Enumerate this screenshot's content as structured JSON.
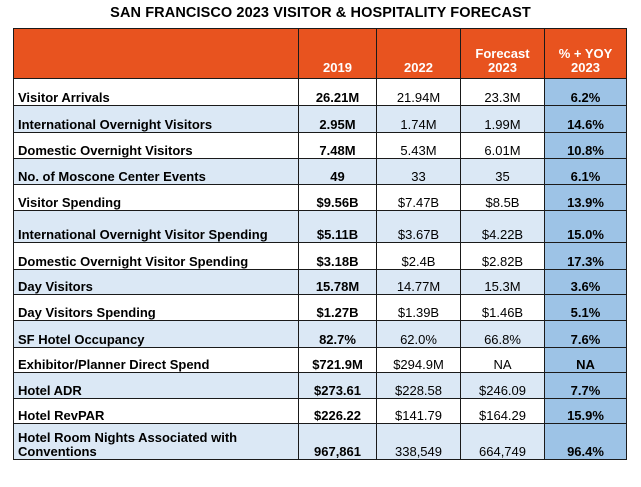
{
  "title": "SAN FRANCISCO 2023 VISITOR & HOSPITALITY FORECAST",
  "colors": {
    "header_bg": "#e8531f",
    "header_text": "#ffffff",
    "band": "#dbe8f5",
    "yoy_col": "#9dc3e6"
  },
  "headers": {
    "metric": "",
    "y2019": "2019",
    "y2022": "2022",
    "forecast_line1": "Forecast",
    "forecast_line2": "2023",
    "yoy_line1": "% + YOY",
    "yoy_line2": "2023"
  },
  "rows": [
    {
      "metric": "Visitor Arrivals",
      "y2019": "26.21M",
      "y2022": "21.94M",
      "f2023": "23.3M",
      "yoy": "6.2%"
    },
    {
      "metric": "International Overnight Visitors",
      "y2019": "2.95M",
      "y2022": "1.74M",
      "f2023": "1.99M",
      "yoy": "14.6%"
    },
    {
      "metric": "Domestic Overnight Visitors",
      "y2019": "7.48M",
      "y2022": "5.43M",
      "f2023": "6.01M",
      "yoy": "10.8%"
    },
    {
      "metric": "No. of Moscone Center Events",
      "y2019": "49",
      "y2022": "33",
      "f2023": "35",
      "yoy": "6.1%"
    },
    {
      "metric": "Visitor Spending",
      "y2019": "$9.56B",
      "y2022": "$7.47B",
      "f2023": "$8.5B",
      "yoy": "13.9%"
    },
    {
      "metric": "International Overnight Visitor Spending",
      "y2019": "$5.11B",
      "y2022": "$3.67B",
      "f2023": "$4.22B",
      "yoy": "15.0%"
    },
    {
      "metric": "Domestic Overnight Visitor Spending",
      "y2019": "$3.18B",
      "y2022": "$2.4B",
      "f2023": "$2.82B",
      "yoy": "17.3%"
    },
    {
      "metric": "Day Visitors",
      "y2019": "15.78M",
      "y2022": "14.77M",
      "f2023": "15.3M",
      "yoy": "3.6%"
    },
    {
      "metric": "Day Visitors Spending",
      "y2019": "$1.27B",
      "y2022": "$1.39B",
      "f2023": "$1.46B",
      "yoy": "5.1%"
    },
    {
      "metric": "SF Hotel Occupancy",
      "y2019": "82.7%",
      "y2022": "62.0%",
      "f2023": "66.8%",
      "yoy": "7.6%"
    },
    {
      "metric": "Exhibitor/Planner Direct Spend",
      "y2019": "$721.9M",
      "y2022": "$294.9M",
      "f2023": "NA",
      "yoy": "NA"
    },
    {
      "metric": "Hotel ADR",
      "y2019": "$273.61",
      "y2022": "$228.58",
      "f2023": "$246.09",
      "yoy": "7.7%"
    },
    {
      "metric": "Hotel RevPAR",
      "y2019": "$226.22",
      "y2022": "$141.79",
      "f2023": "$164.29",
      "yoy": "15.9%"
    },
    {
      "metric": "Hotel Room Nights Associated with Conventions",
      "y2019": "967,861",
      "y2022": "338,549",
      "f2023": "664,749",
      "yoy": "96.4%"
    }
  ]
}
